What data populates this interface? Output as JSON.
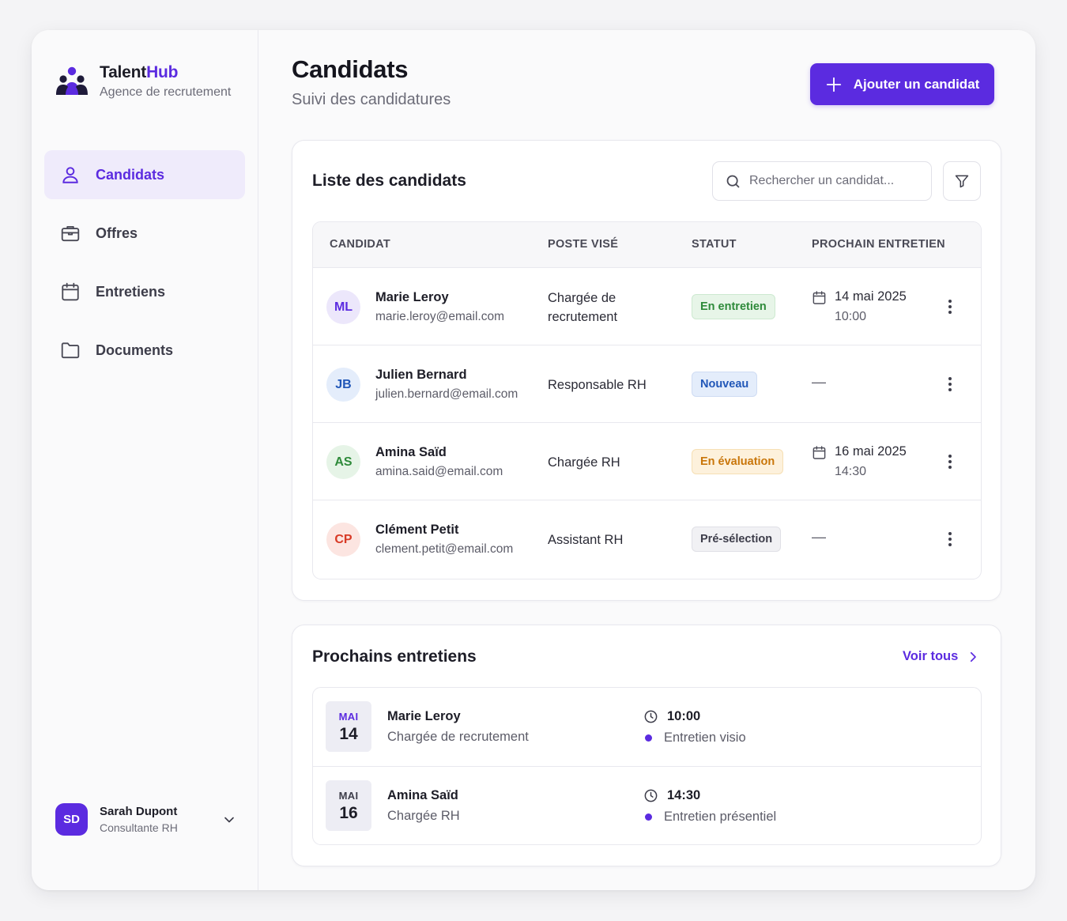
{
  "brand": {
    "name_part1": "Talent",
    "name_part2": "Hub",
    "subtitle": "Agence de recrutement"
  },
  "nav": {
    "items": [
      {
        "label": "Candidats",
        "icon": "user-icon",
        "active": true
      },
      {
        "label": "Offres",
        "icon": "briefcase-icon",
        "active": false
      },
      {
        "label": "Entretiens",
        "icon": "calendar-icon",
        "active": false
      },
      {
        "label": "Documents",
        "icon": "folder-icon",
        "active": false
      }
    ]
  },
  "user": {
    "initials": "SD",
    "name": "Sarah Dupont",
    "role": "Consultante RH"
  },
  "header": {
    "title": "Candidats",
    "subtitle": "Suivi des candidatures",
    "add_button_label": "Ajouter un candidat"
  },
  "candidates": {
    "title": "Liste des candidats",
    "search_placeholder": "Rechercher un candidat...",
    "columns": [
      "CANDIDAT",
      "POSTE VISÉ",
      "STATUT",
      "PROCHAIN ENTRETIEN"
    ],
    "rows": [
      {
        "initials": "ML",
        "name": "Marie Leroy",
        "email": "marie.leroy@email.com",
        "position": "Chargée de recrutement",
        "status": "En entretien",
        "date": "14 mai 2025",
        "time": "10:00"
      },
      {
        "initials": "JB",
        "name": "Julien Bernard",
        "email": "julien.bernard@email.com",
        "position": "Responsable RH",
        "status": "Nouveau",
        "empty": "—"
      },
      {
        "initials": "AS",
        "name": "Amina Saïd",
        "email": "amina.said@email.com",
        "position": "Chargée RH",
        "status": "En évaluation",
        "date": "16 mai 2025",
        "time": "14:30"
      },
      {
        "initials": "CP",
        "name": "Clément Petit",
        "email": "clement.petit@email.com",
        "position": "Assistant RH",
        "status": "Pré-sélection",
        "empty": "—"
      }
    ]
  },
  "upcoming": {
    "title": "Prochains entretiens",
    "see_all": "Voir tous",
    "items": [
      {
        "month": "MAI",
        "day": "14",
        "name": "Marie Leroy",
        "role": "Chargée de recrutement",
        "time": "10:00",
        "type": "Entretien visio"
      },
      {
        "month": "MAI",
        "day": "16",
        "name": "Amina Saïd",
        "role": "Chargée RH",
        "time": "14:30",
        "type": "Entretien présentiel"
      }
    ]
  },
  "colors": {
    "accent": "#5b2be0",
    "status_green": "#2e8a3a",
    "status_blue": "#2157b8",
    "status_orange": "#c9760a",
    "status_gray": "#3d3d4a"
  }
}
